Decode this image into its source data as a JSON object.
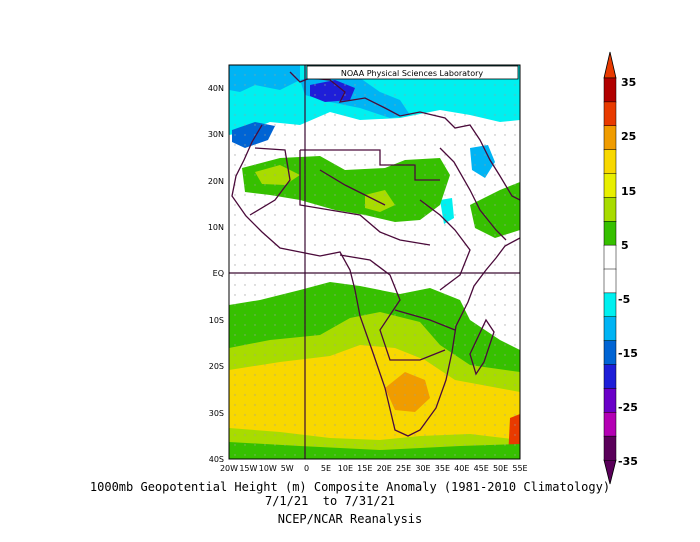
{
  "map": {
    "credit": "NOAA Physical Sciences Laboratory",
    "lat_labels": [
      "40N",
      "30N",
      "20N",
      "10N",
      "EQ",
      "10S",
      "20S",
      "30S",
      "40S"
    ],
    "lon_labels": [
      "20W",
      "15W",
      "10W",
      "5W",
      "0",
      "5E",
      "10E",
      "15E",
      "20E",
      "25E",
      "30E",
      "35E",
      "40E",
      "45E",
      "50E",
      "55E"
    ],
    "extent": {
      "lon": [
        -20,
        55
      ],
      "lat": [
        -40,
        45
      ]
    }
  },
  "colorbar": {
    "labels": [
      "35",
      "25",
      "15",
      "5",
      "-5",
      "-15",
      "-25",
      "-35"
    ],
    "colors": [
      "#b10000",
      "#e83a00",
      "#f09c00",
      "#f8d800",
      "#e8ef00",
      "#a8dc00",
      "#36c000",
      "#ffffff",
      "#ffffff",
      "#00f0f0",
      "#00b4f4",
      "#0064d4",
      "#1e1ed8",
      "#6a00c8",
      "#b400b4",
      "#5a005a"
    ]
  },
  "caption": {
    "title": "1000mb Geopotential Height (m) Composite Anomaly (1981-2010 Climatology)",
    "dates": "7/1/21  to 7/31/21",
    "source": "NCEP/NCAR Reanalysis"
  }
}
